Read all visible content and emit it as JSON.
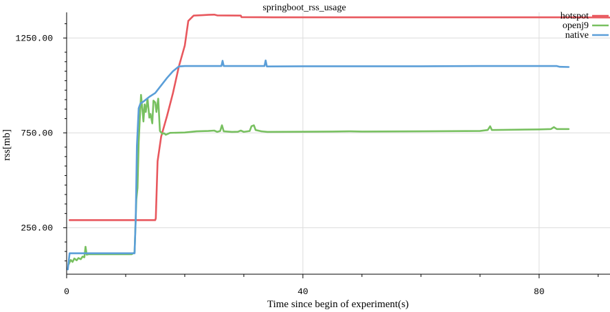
{
  "chart_data": {
    "type": "line",
    "title": "springboot_rss_usage",
    "xlabel": "Time since begin of experiment(s)",
    "ylabel": "rss[mb]",
    "xlim": [
      0,
      92
    ],
    "ylim": [
      5,
      1385
    ],
    "x_ticks": [
      0,
      40,
      80
    ],
    "x_minor_ticks": [
      10,
      20,
      30,
      50,
      60,
      70,
      90
    ],
    "y_ticks": [
      250,
      750,
      1250
    ],
    "y_tick_labels": [
      "250.00",
      "750.00",
      "1250.00"
    ],
    "y_minor_ticks": [
      75,
      125,
      175,
      325,
      375,
      425,
      475,
      525,
      575,
      625,
      675,
      825,
      875,
      925,
      975,
      1025,
      1075,
      1125,
      1175,
      1325
    ],
    "grid": true,
    "legend_position": "top-right",
    "series": [
      {
        "name": "hotspot",
        "color": "#e8575d",
        "points": [
          [
            0.5,
            290
          ],
          [
            15,
            290
          ],
          [
            15.1,
            300
          ],
          [
            15.4,
            600
          ],
          [
            16,
            730
          ],
          [
            17,
            840
          ],
          [
            18,
            960
          ],
          [
            19,
            1100
          ],
          [
            20,
            1210
          ],
          [
            20.6,
            1340
          ],
          [
            21.5,
            1368
          ],
          [
            23,
            1370
          ],
          [
            24,
            1372
          ],
          [
            25,
            1373
          ],
          [
            25.5,
            1369
          ],
          [
            29.5,
            1368
          ],
          [
            29.6,
            1360
          ],
          [
            35,
            1359
          ],
          [
            50,
            1359
          ],
          [
            70,
            1359
          ],
          [
            85,
            1359
          ],
          [
            92,
            1358
          ]
        ]
      },
      {
        "name": "openj9",
        "color": "#78c060",
        "points": [
          [
            0.3,
            55
          ],
          [
            0.7,
            80
          ],
          [
            1,
            70
          ],
          [
            1.3,
            88
          ],
          [
            1.7,
            78
          ],
          [
            2,
            90
          ],
          [
            2.4,
            84
          ],
          [
            2.7,
            98
          ],
          [
            3,
            94
          ],
          [
            3.2,
            150
          ],
          [
            3.4,
            108
          ],
          [
            3.7,
            110
          ],
          [
            11,
            110
          ],
          [
            11.5,
            120
          ],
          [
            11.8,
            400
          ],
          [
            12,
            460
          ],
          [
            12.2,
            700
          ],
          [
            12.4,
            830
          ],
          [
            12.6,
            950
          ],
          [
            12.8,
            880
          ],
          [
            13,
            810
          ],
          [
            13.2,
            900
          ],
          [
            13.4,
            860
          ],
          [
            13.7,
            930
          ],
          [
            14,
            830
          ],
          [
            14.2,
            850
          ],
          [
            14.5,
            800
          ],
          [
            14.7,
            920
          ],
          [
            15,
            910
          ],
          [
            15.2,
            860
          ],
          [
            15.5,
            930
          ],
          [
            15.8,
            760
          ],
          [
            16.2,
            745
          ],
          [
            16.5,
            748
          ],
          [
            16.8,
            740
          ],
          [
            17.5,
            750
          ],
          [
            20,
            752
          ],
          [
            22,
            758
          ],
          [
            24,
            760
          ],
          [
            25,
            762
          ],
          [
            25.5,
            755
          ],
          [
            26,
            760
          ],
          [
            26.3,
            790
          ],
          [
            26.6,
            758
          ],
          [
            28,
            755
          ],
          [
            29,
            756
          ],
          [
            29.5,
            762
          ],
          [
            30,
            755
          ],
          [
            31,
            760
          ],
          [
            31.3,
            785
          ],
          [
            31.7,
            790
          ],
          [
            32,
            765
          ],
          [
            33,
            758
          ],
          [
            34,
            755
          ],
          [
            40,
            756
          ],
          [
            45,
            757
          ],
          [
            48,
            758
          ],
          [
            50,
            757
          ],
          [
            60,
            758
          ],
          [
            70,
            760
          ],
          [
            71.3,
            765
          ],
          [
            71.7,
            785
          ],
          [
            72,
            765
          ],
          [
            80,
            768
          ],
          [
            82,
            770
          ],
          [
            82.5,
            780
          ],
          [
            83,
            770
          ],
          [
            85,
            770
          ]
        ]
      },
      {
        "name": "native",
        "color": "#5a9ed8",
        "points": [
          [
            0.2,
            30
          ],
          [
            0.5,
            115
          ],
          [
            11.5,
            115
          ],
          [
            11.7,
            300
          ],
          [
            11.9,
            680
          ],
          [
            12.2,
            880
          ],
          [
            12.5,
            905
          ],
          [
            13,
            915
          ],
          [
            14,
            940
          ],
          [
            15,
            960
          ],
          [
            16,
            1000
          ],
          [
            17,
            1040
          ],
          [
            18,
            1075
          ],
          [
            19,
            1100
          ],
          [
            20,
            1102
          ],
          [
            25,
            1102
          ],
          [
            26.2,
            1102
          ],
          [
            26.4,
            1130
          ],
          [
            26.6,
            1102
          ],
          [
            33.5,
            1102
          ],
          [
            33.7,
            1132
          ],
          [
            33.9,
            1100
          ],
          [
            40,
            1101
          ],
          [
            50,
            1101
          ],
          [
            60,
            1101
          ],
          [
            70,
            1102
          ],
          [
            80,
            1102
          ],
          [
            83,
            1102
          ],
          [
            83.5,
            1098
          ],
          [
            85,
            1097
          ]
        ]
      }
    ]
  }
}
